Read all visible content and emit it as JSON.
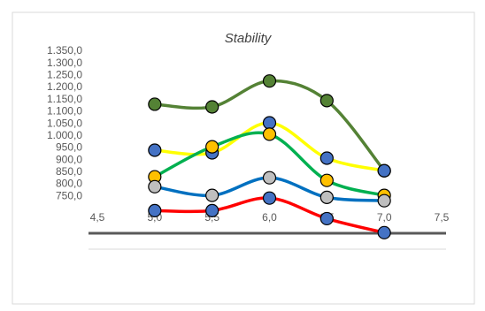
{
  "chart_data": {
    "type": "line",
    "title": "Stability",
    "x": [
      5.0,
      5.5,
      6.0,
      6.5,
      7.0
    ],
    "series": [
      {
        "color": "#548235",
        "marker": "#548235",
        "values": [
          1131,
          1120,
          1227,
          1146,
          856
        ]
      },
      {
        "color": "#ffff00",
        "marker": "#4472c4",
        "values": [
          941,
          930,
          1054,
          908,
          856
        ]
      },
      {
        "color": "#00b050",
        "marker": "#ffc000",
        "values": [
          831,
          955,
          1007,
          816,
          754
        ]
      },
      {
        "color": "#0070c0",
        "marker": "#bfbfbf",
        "values": [
          790,
          754,
          827,
          746,
          732
        ]
      },
      {
        "color": "#ff0000",
        "marker": "#4472c4",
        "values": [
          691,
          691,
          743,
          658,
          600
        ]
      }
    ],
    "xlim": [
      4.5,
      7.5
    ],
    "xticks": [
      {
        "value": 4.5,
        "label": "4,5"
      },
      {
        "value": 5.0,
        "label": "5,0"
      },
      {
        "value": 5.5,
        "label": "5,5"
      },
      {
        "value": 6.0,
        "label": "6,0"
      },
      {
        "value": 6.5,
        "label": "6,5"
      },
      {
        "value": 7.0,
        "label": "7,0"
      },
      {
        "value": 7.5,
        "label": "7,5"
      }
    ],
    "ylim": [
      550,
      1350
    ],
    "yticks": [
      {
        "value": 750,
        "label": "750,0"
      },
      {
        "value": 800,
        "label": "800,0"
      },
      {
        "value": 850,
        "label": "850,0"
      },
      {
        "value": 900,
        "label": "900,0"
      },
      {
        "value": 950,
        "label": "950,0"
      },
      {
        "value": 1000,
        "label": "1.000,0"
      },
      {
        "value": 1050,
        "label": "1.050,0"
      },
      {
        "value": 1100,
        "label": "1.100,0"
      },
      {
        "value": 1150,
        "label": "1.150,0"
      },
      {
        "value": 1200,
        "label": "1.200,0"
      },
      {
        "value": 1250,
        "label": "1.250,0"
      },
      {
        "value": 1300,
        "label": "1.300,0"
      },
      {
        "value": 1350,
        "label": "1.350,0"
      }
    ],
    "grid": false,
    "smooth": true
  }
}
